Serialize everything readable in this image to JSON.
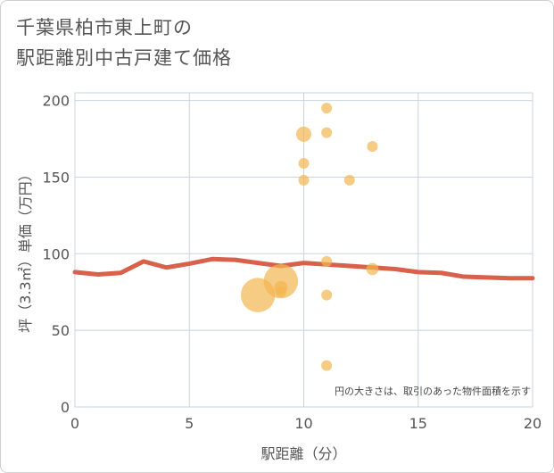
{
  "title_line1": "千葉県柏市東上町の",
  "title_line2": "駅距離別中古戸建て価格",
  "chart_data": {
    "type": "scatter",
    "title": "千葉県柏市東上町の駅距離別中古戸建て価格",
    "xlabel": "駅距離（分）",
    "ylabel": "坪（3.3㎡）単価（万円）",
    "xlim": [
      0,
      20
    ],
    "ylim": [
      0,
      205
    ],
    "x_ticks": [
      0,
      5,
      10,
      15,
      20
    ],
    "y_ticks": [
      0,
      50,
      100,
      150,
      200
    ],
    "grid": true,
    "annotation": "円の大きさは、取引のあった物件面積を示す",
    "colors": {
      "points": "#f2b54f",
      "line": "#d9614c",
      "grid": "#c8d4df"
    },
    "points": [
      {
        "x": 8,
        "y": 73,
        "size": 3
      },
      {
        "x": 9,
        "y": 82,
        "size": 3
      },
      {
        "x": 9,
        "y": 78,
        "size": 1.5
      },
      {
        "x": 9,
        "y": 75,
        "size": 1
      },
      {
        "x": 10,
        "y": 178,
        "size": 2
      },
      {
        "x": 10,
        "y": 159,
        "size": 1
      },
      {
        "x": 10,
        "y": 148,
        "size": 1
      },
      {
        "x": 11,
        "y": 195,
        "size": 1
      },
      {
        "x": 11,
        "y": 179,
        "size": 1
      },
      {
        "x": 11,
        "y": 95,
        "size": 1
      },
      {
        "x": 11,
        "y": 73,
        "size": 1
      },
      {
        "x": 11,
        "y": 27,
        "size": 1
      },
      {
        "x": 12,
        "y": 148,
        "size": 1
      },
      {
        "x": 13,
        "y": 170,
        "size": 1
      },
      {
        "x": 13,
        "y": 90,
        "size": 1.3
      }
    ],
    "trend_line": {
      "x": [
        0,
        1,
        2,
        3,
        4,
        5,
        6,
        7,
        8,
        9,
        10,
        11,
        12,
        13,
        14,
        15,
        16,
        17,
        18,
        19,
        20
      ],
      "y": [
        88,
        86.5,
        87.5,
        95,
        91,
        93.5,
        96.5,
        96,
        94,
        92,
        94,
        93,
        92,
        91,
        90,
        88,
        87.5,
        85,
        84.5,
        84,
        84
      ]
    }
  }
}
